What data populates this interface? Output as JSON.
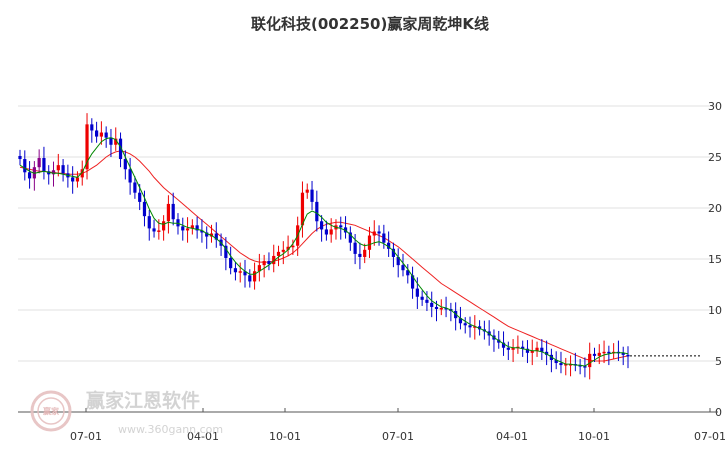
{
  "chart_data": {
    "type": "line",
    "title": "联化科技(002250)赢家周乾坤K线",
    "xlabel": "",
    "ylabel": "",
    "ylim": [
      0,
      30
    ],
    "yticks": [
      0,
      5,
      10,
      15,
      20,
      25,
      30
    ],
    "xtick_labels": [
      "07-01",
      "04-01",
      "10-01",
      "07-01",
      "04-01",
      "10-01",
      "07-01"
    ],
    "grid": "horizontal",
    "colors": {
      "up": "#ee0000",
      "down": "#0000cc",
      "neutral": "#880088",
      "ma_fast": "#008800",
      "ma_slow": "#ee2222",
      "last_price_line": "#000000",
      "grid": "#e2e2e2"
    },
    "series": [
      {
        "role": "close",
        "values": [
          24.8,
          23.5,
          22.9,
          24.0,
          24.9,
          23.6,
          23.3,
          23.7,
          24.2,
          23.4,
          23.0,
          22.6,
          23.0,
          23.8,
          28.2,
          27.6,
          27.0,
          27.4,
          26.9,
          26.2,
          26.8,
          24.8,
          23.8,
          22.5,
          21.5,
          20.6,
          19.2,
          18.0,
          17.7,
          17.8,
          18.7,
          20.4,
          18.9,
          18.2,
          17.8,
          18.0,
          18.3,
          17.8,
          17.6,
          17.2,
          17.5,
          16.9,
          16.3,
          15.1,
          14.1,
          13.7,
          13.8,
          13.4,
          12.8,
          13.8,
          14.4,
          14.8,
          14.5,
          15.3,
          15.7,
          15.9,
          16.2,
          16.3,
          18.3,
          21.5,
          21.8,
          20.6,
          18.7,
          17.9,
          17.4,
          17.9,
          18.3,
          18.1,
          17.6,
          16.6,
          15.5,
          15.2,
          15.9,
          17.3,
          17.7,
          17.5,
          16.6,
          16.0,
          15.2,
          14.4,
          13.9,
          13.4,
          12.1,
          11.3,
          11.0,
          10.7,
          10.3,
          10.1,
          10.2,
          10.1,
          9.9,
          9.2,
          8.7,
          8.5,
          8.3,
          8.4,
          8.1,
          7.9,
          7.5,
          7.1,
          6.8,
          6.3,
          6.1,
          6.3,
          6.4,
          6.2,
          5.8,
          6.0,
          6.3,
          5.9,
          5.6,
          5.1,
          4.8,
          4.6,
          4.7,
          4.7,
          4.6,
          4.5,
          4.4,
          5.7,
          5.5,
          5.8,
          5.9,
          5.8,
          5.9,
          5.8,
          5.6,
          5.5
        ],
        "last": 5.5
      },
      {
        "role": "ma_fast",
        "values": [
          24.2,
          23.9,
          23.6,
          23.4,
          23.5,
          23.6,
          23.5,
          23.4,
          23.4,
          23.3,
          23.2,
          23.1,
          23.0,
          23.5,
          24.5,
          25.3,
          25.9,
          26.5,
          26.8,
          26.9,
          26.7,
          26.0,
          25.0,
          24.0,
          23.0,
          22.0,
          21.0,
          19.9,
          19.0,
          18.5,
          18.4,
          18.6,
          18.5,
          18.5,
          18.3,
          18.1,
          18.0,
          17.9,
          17.8,
          17.5,
          17.3,
          17.0,
          16.6,
          16.0,
          15.3,
          14.7,
          14.2,
          13.8,
          13.5,
          13.5,
          13.8,
          14.1,
          14.4,
          14.8,
          15.2,
          15.5,
          15.9,
          16.5,
          17.3,
          18.4,
          19.4,
          19.7,
          19.5,
          19.1,
          18.6,
          18.3,
          18.1,
          18.0,
          17.8,
          17.4,
          16.9,
          16.5,
          16.3,
          16.4,
          16.6,
          16.7,
          16.5,
          16.2,
          15.8,
          15.2,
          14.6,
          14.0,
          13.3,
          12.6,
          12.0,
          11.4,
          10.9,
          10.6,
          10.3,
          10.2,
          10.0,
          9.6,
          9.2,
          8.9,
          8.6,
          8.4,
          8.2,
          8.0,
          7.7,
          7.3,
          7.0,
          6.7,
          6.4,
          6.3,
          6.3,
          6.2,
          6.1,
          6.0,
          6.0,
          5.9,
          5.7,
          5.4,
          5.1,
          4.9,
          4.7,
          4.7,
          4.6,
          4.6,
          4.5,
          4.8,
          5.1,
          5.4,
          5.6,
          5.7,
          5.8,
          5.8,
          5.8,
          5.7
        ]
      },
      {
        "role": "ma_slow",
        "values": [
          24.0,
          23.9,
          23.8,
          23.7,
          23.6,
          23.6,
          23.5,
          23.5,
          23.4,
          23.4,
          23.3,
          23.3,
          23.3,
          23.4,
          23.6,
          23.9,
          24.2,
          24.6,
          25.0,
          25.3,
          25.5,
          25.6,
          25.5,
          25.3,
          25.0,
          24.6,
          24.1,
          23.6,
          23.0,
          22.5,
          22.0,
          21.6,
          21.2,
          20.8,
          20.4,
          20.0,
          19.6,
          19.2,
          18.8,
          18.4,
          18.0,
          17.6,
          17.2,
          16.8,
          16.4,
          16.0,
          15.6,
          15.3,
          15.0,
          14.8,
          14.7,
          14.7,
          14.7,
          14.8,
          14.9,
          15.1,
          15.3,
          15.6,
          16.0,
          16.5,
          17.0,
          17.5,
          17.9,
          18.2,
          18.4,
          18.5,
          18.6,
          18.6,
          18.5,
          18.4,
          18.3,
          18.1,
          17.9,
          17.7,
          17.5,
          17.3,
          17.1,
          16.8,
          16.5,
          16.2,
          15.8,
          15.4,
          15.0,
          14.6,
          14.2,
          13.8,
          13.4,
          13.0,
          12.6,
          12.3,
          12.0,
          11.7,
          11.4,
          11.1,
          10.8,
          10.5,
          10.2,
          9.9,
          9.6,
          9.3,
          9.0,
          8.7,
          8.4,
          8.2,
          8.0,
          7.8,
          7.6,
          7.4,
          7.2,
          7.0,
          6.8,
          6.6,
          6.4,
          6.2,
          6.0,
          5.8,
          5.6,
          5.4,
          5.2,
          5.1,
          5.0,
          5.0,
          5.0,
          5.1,
          5.2,
          5.3,
          5.4,
          5.5
        ]
      }
    ]
  },
  "watermark": {
    "seal_text": "赢家",
    "brand": "赢家江恩软件",
    "url": "www.360gann.com"
  }
}
